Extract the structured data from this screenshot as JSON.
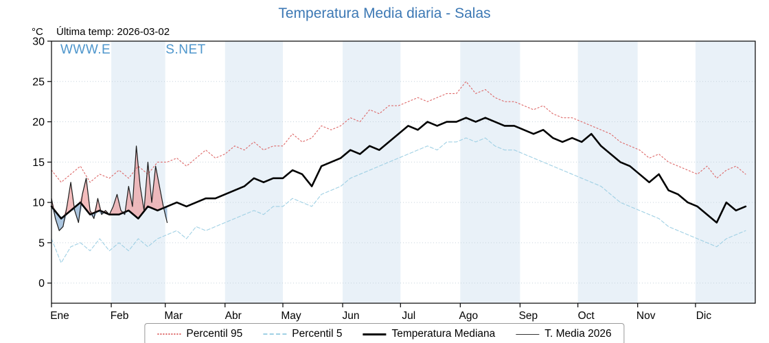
{
  "header": {
    "title": "Temperatura Media diaria - Salas",
    "unit_label": "°C",
    "last_temp": "Última temp: 2026-03-02",
    "watermark": "WWW.EMBALSES.NET"
  },
  "legend": {
    "items": [
      {
        "label": "Percentil 95",
        "color": "#dd6666",
        "line_style": "dotted",
        "thickness": 2
      },
      {
        "label": "Percentil 5",
        "color": "#9fd0e4",
        "line_style": "dashed",
        "thickness": 2
      },
      {
        "label": "Temperatura Mediana",
        "color": "#000000",
        "line_style": "solid",
        "thickness": 3
      },
      {
        "label": "T. Media 2026",
        "color": "#333333",
        "line_style": "solid",
        "thickness": 1
      }
    ]
  },
  "chart_data": {
    "type": "line",
    "title": "Temperatura Media diaria - Salas",
    "x_axis": {
      "tick_labels": [
        "Ene",
        "Feb",
        "Mar",
        "Abr",
        "May",
        "Jun",
        "Jul",
        "Ago",
        "Sep",
        "Oct",
        "Nov",
        "Dic"
      ],
      "month_start_days": [
        0,
        31,
        59,
        90,
        120,
        151,
        181,
        212,
        243,
        273,
        304,
        334
      ],
      "days_in_year": 365
    },
    "y_axis": {
      "label": "°C",
      "ticks": [
        0,
        5,
        10,
        15,
        20,
        25,
        30
      ],
      "min": -2.5,
      "max": 30
    },
    "sample_days": [
      0,
      5,
      10,
      15,
      20,
      25,
      30,
      35,
      40,
      45,
      50,
      55,
      60,
      65,
      70,
      75,
      80,
      85,
      90,
      95,
      100,
      105,
      110,
      115,
      120,
      125,
      130,
      135,
      140,
      145,
      150,
      155,
      160,
      165,
      170,
      175,
      180,
      185,
      190,
      195,
      200,
      205,
      210,
      215,
      220,
      225,
      230,
      235,
      240,
      245,
      250,
      255,
      260,
      265,
      270,
      275,
      280,
      285,
      290,
      295,
      300,
      305,
      310,
      315,
      320,
      325,
      330,
      335,
      340,
      345,
      350,
      355,
      360
    ],
    "series": [
      {
        "name": "Percentil 95",
        "color": "#dd6666",
        "dash": "2 3",
        "width": 1.1,
        "values": [
          14,
          12.5,
          13.5,
          14.5,
          12.5,
          13.5,
          13,
          14,
          13,
          14.5,
          13.5,
          15,
          15,
          15.5,
          14.5,
          15.5,
          16.5,
          15.5,
          16,
          17,
          16.5,
          17.5,
          16.5,
          17,
          17,
          18.5,
          17.5,
          18,
          19.5,
          19,
          19.5,
          20.5,
          20,
          21.5,
          21,
          22,
          22,
          22.5,
          23,
          22.5,
          23,
          23.5,
          23.5,
          25,
          23.5,
          24,
          23,
          22.5,
          22.5,
          22,
          21.5,
          22,
          21,
          20.5,
          20.5,
          20,
          19.5,
          19,
          18.5,
          17.5,
          17,
          16.5,
          15.5,
          16,
          15,
          14.5,
          14,
          13.5,
          14.5,
          13,
          14,
          14.5,
          13.5
        ]
      },
      {
        "name": "Percentil 5",
        "color": "#9fd0e4",
        "dash": "5 3",
        "width": 1.1,
        "values": [
          5.5,
          2.5,
          4.5,
          5,
          4,
          5.5,
          4,
          5,
          4,
          5.5,
          4.5,
          5.5,
          6,
          6.5,
          5.5,
          7,
          6.5,
          7,
          7.5,
          8,
          8.5,
          9,
          8.5,
          9.5,
          9.5,
          10.5,
          10,
          9.5,
          11,
          11.5,
          12,
          13,
          13.5,
          14,
          14.5,
          15,
          15.5,
          16,
          16.5,
          17,
          16.5,
          17.5,
          17.5,
          18,
          17.5,
          18,
          17,
          16.5,
          16.5,
          16,
          15.5,
          15,
          14.5,
          14,
          13.5,
          13,
          12.5,
          12,
          11,
          10,
          9.5,
          9,
          8.5,
          8,
          7,
          6.5,
          6,
          5.5,
          5,
          4.5,
          5.5,
          6,
          6.5
        ]
      },
      {
        "name": "Temperatura Mediana",
        "color": "#000000",
        "dash": "",
        "width": 2.6,
        "values": [
          9.5,
          8,
          9,
          10,
          8.5,
          9,
          8.5,
          8.5,
          9,
          8,
          9.5,
          9,
          9.5,
          10,
          9.5,
          10,
          10.5,
          10.5,
          11,
          11.5,
          12,
          13,
          12.5,
          13,
          13,
          14,
          13.5,
          12,
          14.5,
          15,
          15.5,
          16.5,
          16,
          17,
          16.5,
          17.5,
          18.5,
          19.5,
          19,
          20,
          19.5,
          20,
          20,
          20.5,
          20,
          20.5,
          20,
          19.5,
          19.5,
          19,
          18.5,
          19,
          18,
          17.5,
          18,
          17.5,
          18.5,
          17,
          16,
          15,
          14.5,
          13.5,
          12.5,
          13.5,
          11.5,
          11,
          10,
          9.5,
          8.5,
          7.5,
          10,
          9,
          9.5
        ]
      },
      {
        "name": "T. Media 2026",
        "color": "#1a1a1a",
        "dash": "",
        "width": 1.2,
        "days": [
          0,
          2,
          4,
          6,
          8,
          10,
          12,
          14,
          16,
          18,
          20,
          22,
          24,
          26,
          28,
          30,
          32,
          34,
          36,
          38,
          40,
          42,
          44,
          46,
          48,
          50,
          52,
          54,
          56,
          58,
          60
        ],
        "values": [
          10.5,
          8,
          6.5,
          7,
          9.5,
          12.5,
          9,
          7.5,
          11,
          13,
          9,
          8,
          10.5,
          8.5,
          9,
          8.5,
          9.5,
          11,
          9,
          8.5,
          12,
          9.5,
          17,
          12,
          9,
          15,
          10,
          14.5,
          12,
          9.5,
          7.5
        ]
      }
    ],
    "anomaly_fill": {
      "above_color": "#ee9999",
      "below_color": "#7fa8cf",
      "opacity": 0.65
    },
    "plot_style": {
      "band_color": "#e9f1f8",
      "grid_color": "#c6d2dc",
      "border_color": "#000000"
    }
  }
}
